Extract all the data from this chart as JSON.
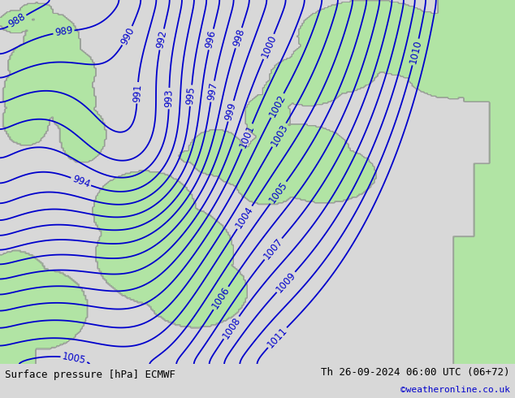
{
  "title_left": "Surface pressure [hPa] ECMWF",
  "title_right": "Th 26-09-2024 06:00 UTC (06+72)",
  "credit": "©weatheronline.co.uk",
  "bg_color": "#d8d8d8",
  "land_color_rgb": [
    0.698,
    0.898,
    0.647
  ],
  "sea_color": "#d4d4d4",
  "contour_color": "#0000cc",
  "contour_linewidth": 1.3,
  "label_fontsize": 8.5,
  "figsize": [
    6.34,
    4.9
  ],
  "dpi": 100,
  "bottom_bar_color": "#e8e8e8",
  "bottom_text_color": "#000000",
  "credit_color": "#0000cc"
}
